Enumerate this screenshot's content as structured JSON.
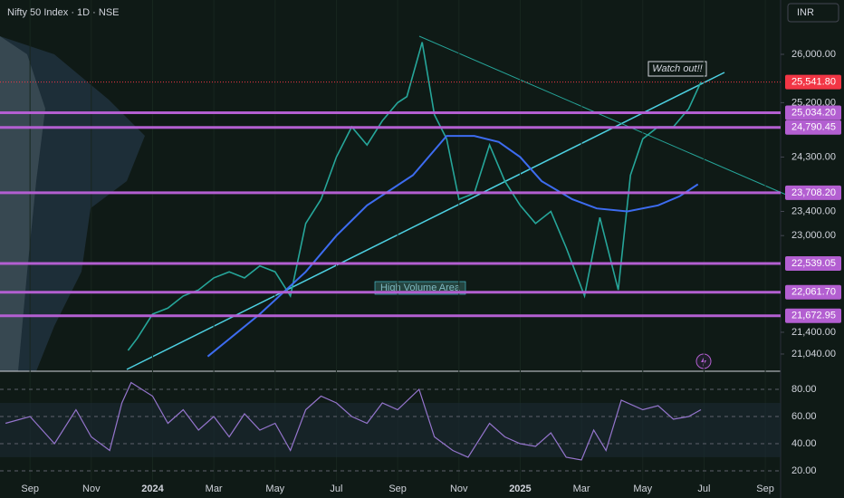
{
  "chart_data": {
    "type": "line",
    "title": "Nifty 50 Index · 1D · NSE",
    "currency": "INR",
    "xlim": [
      0.02,
      25.5
    ],
    "xticks": [
      {
        "value": 1,
        "label": "Sep"
      },
      {
        "value": 3,
        "label": "Nov"
      },
      {
        "value": 5,
        "label": "2024"
      },
      {
        "value": 7,
        "label": "Mar"
      },
      {
        "value": 9,
        "label": "May"
      },
      {
        "value": 11,
        "label": "Jul"
      },
      {
        "value": 13,
        "label": "Sep"
      },
      {
        "value": 15,
        "label": "Nov"
      },
      {
        "value": 17,
        "label": "2025"
      },
      {
        "value": 19,
        "label": "Mar"
      },
      {
        "value": 21,
        "label": "May"
      },
      {
        "value": 23,
        "label": "Jul"
      },
      {
        "value": 25,
        "label": "Sep"
      }
    ],
    "ylim": [
      20755,
      26899
    ],
    "yticks": [
      {
        "value": 26000,
        "label": "26,000.00"
      },
      {
        "value": 25200,
        "label": "25,200.00"
      },
      {
        "value": 24300,
        "label": "24,300.00"
      },
      {
        "value": 23400,
        "label": "23,400.00"
      },
      {
        "value": 23000,
        "label": "23,000.00"
      },
      {
        "value": 21400,
        "label": "21,400.00"
      },
      {
        "value": 21040,
        "label": "21,040.00"
      }
    ],
    "series": [
      {
        "color": "#26a69a",
        "x": [
          4.2,
          4.5,
          5,
          5.5,
          6,
          6.5,
          7,
          7.5,
          8,
          8.5,
          9,
          9.5,
          10,
          10.5,
          11,
          11.5,
          12,
          12.5,
          13,
          13.3,
          13.8,
          14.2,
          14.6,
          15,
          15.5,
          16,
          16.5,
          17,
          17.5,
          18,
          18.5,
          19.1,
          19.6,
          20.2,
          20.6,
          21,
          21.5,
          22,
          22.5,
          22.9
        ],
        "values": [
          21100,
          21300,
          21700,
          21800,
          22000,
          22100,
          22300,
          22400,
          22300,
          22500,
          22400,
          22000,
          23200,
          23600,
          24300,
          24800,
          24500,
          24900,
          25200,
          25300,
          26200,
          25000,
          24600,
          23600,
          23700,
          24500,
          23900,
          23500,
          23200,
          23400,
          22800,
          22000,
          23300,
          22100,
          24000,
          24600,
          24800,
          24800,
          25100,
          25541.8
        ]
      },
      {
        "color": "#3d6cf0",
        "x": [
          6.8,
          8.5,
          10,
          11,
          12,
          13.5,
          14.6,
          15.5,
          16.3,
          17,
          17.7,
          18.7,
          19.5,
          20.5,
          21.5,
          22.2,
          22.8
        ],
        "values": [
          21000,
          21700,
          22400,
          23000,
          23500,
          24000,
          24650,
          24650,
          24550,
          24300,
          23900,
          23600,
          23450,
          23400,
          23500,
          23650,
          23850
        ]
      }
    ],
    "levels": [
      {
        "value": 25541.8,
        "label": "25,541.80",
        "color": "#f23645"
      },
      {
        "value": 25034.2,
        "label": "25,034.20",
        "color": "#b35fd1"
      },
      {
        "value": 24790.45,
        "label": "24,790.45",
        "color": "#b35fd1"
      },
      {
        "value": 23708.2,
        "label": "23,708.20",
        "color": "#b35fd1"
      },
      {
        "value": 22539.05,
        "label": "22,539.05",
        "color": "#b35fd1"
      },
      {
        "value": 22061.7,
        "label": "22,061.70",
        "color": "#b35fd1"
      },
      {
        "value": 21672.95,
        "label": "21,672.95",
        "color": "#b35fd1"
      }
    ],
    "annotations": [
      "Watch out!!",
      "High Volume Area"
    ],
    "rsi": {
      "ylim": [
        13.3,
        92
      ],
      "yticks": [
        {
          "value": 80,
          "label": "80.00"
        },
        {
          "value": 60,
          "label": "60.00"
        },
        {
          "value": 40,
          "label": "40.00"
        },
        {
          "value": 20,
          "label": "20.00"
        }
      ],
      "series": [
        {
          "color": "#9575cd",
          "x": [
            0.2,
            1,
            1.8,
            2.5,
            3,
            3.6,
            4,
            4.3,
            5,
            5.5,
            6,
            6.5,
            7,
            7.5,
            8,
            8.5,
            9,
            9.5,
            10,
            10.5,
            11,
            11.5,
            12,
            12.5,
            13,
            13.7,
            14.2,
            14.8,
            15.3,
            16,
            16.5,
            17,
            17.5,
            18,
            18.5,
            19,
            19.4,
            19.8,
            20.3,
            21,
            21.5,
            22,
            22.5,
            22.9
          ],
          "values": [
            55,
            60,
            40,
            65,
            45,
            35,
            70,
            85,
            75,
            55,
            65,
            50,
            60,
            45,
            62,
            50,
            55,
            35,
            65,
            75,
            70,
            60,
            55,
            70,
            65,
            80,
            45,
            35,
            30,
            55,
            45,
            40,
            38,
            48,
            30,
            28,
            50,
            35,
            72,
            65,
            68,
            58,
            60,
            65
          ]
        }
      ]
    }
  }
}
